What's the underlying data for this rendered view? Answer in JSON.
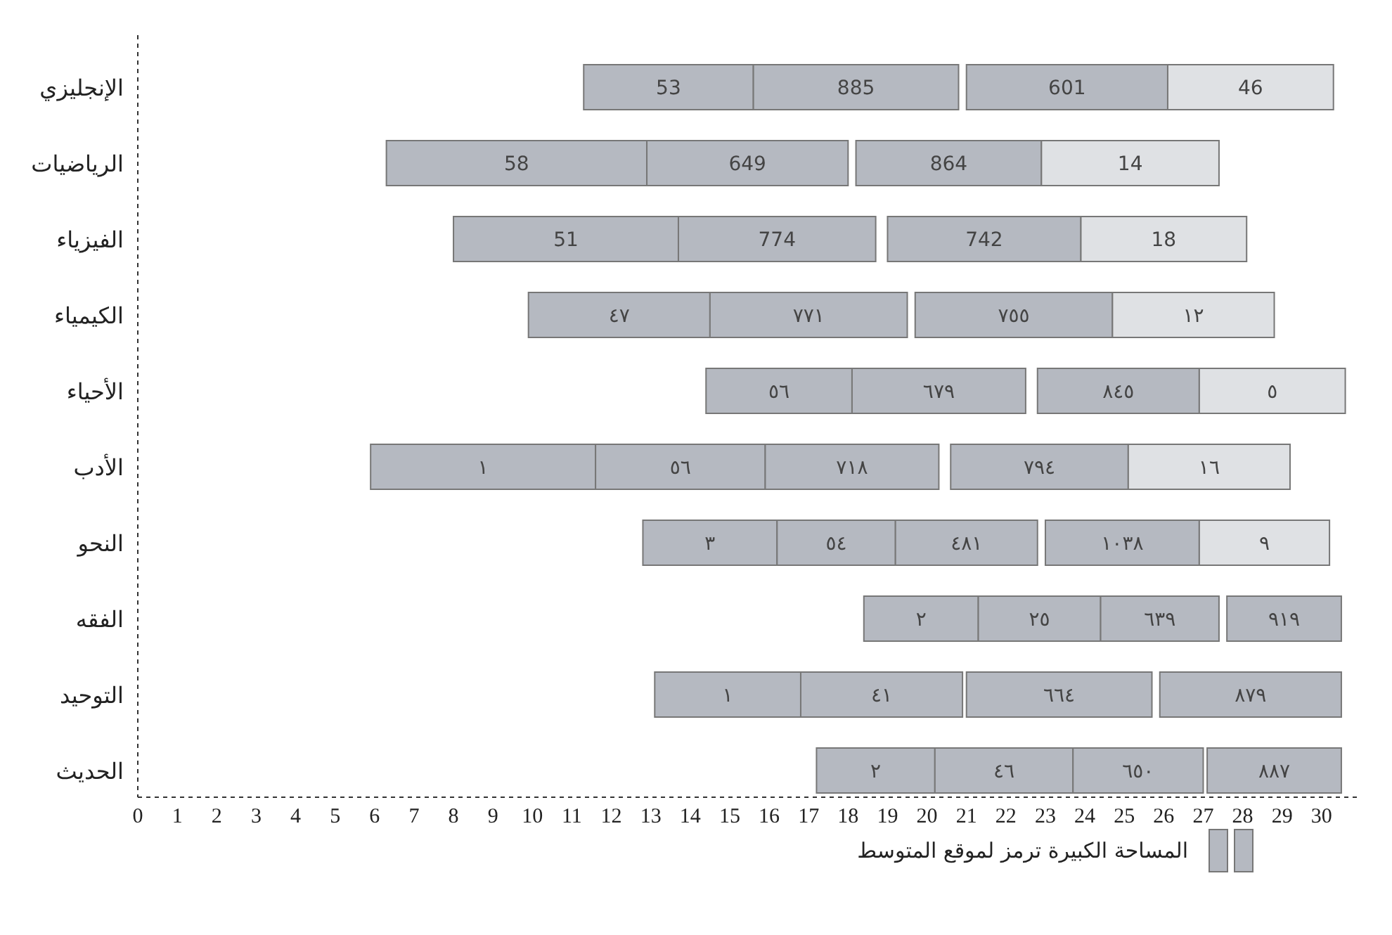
{
  "chart_data": {
    "type": "bar",
    "orientation": "horizontal",
    "grid": false,
    "categories": [
      "الإنجليزي",
      "الرياضيات",
      "الفيزياء",
      "الكيمياء",
      "الأحياء",
      "الأدب",
      "النحو",
      "الفقه",
      "التوحيد",
      "الحديث"
    ],
    "xlim": [
      0,
      31
    ],
    "xticks": [
      0,
      1,
      2,
      3,
      4,
      5,
      6,
      7,
      8,
      9,
      10,
      11,
      12,
      13,
      14,
      15,
      16,
      17,
      18,
      19,
      20,
      21,
      22,
      23,
      24,
      25,
      26,
      27,
      28,
      29,
      30
    ],
    "series": [
      {
        "base": [
          11.3,
          6.3,
          8.0,
          9.9,
          14.4,
          5.9,
          12.8,
          18.4,
          13.1,
          17.2
        ],
        "values": [
          4.3,
          6.6,
          5.7,
          4.6,
          3.7,
          5.7,
          3.4,
          2.9,
          3.7,
          3.0
        ],
        "colors": [
          "#b5b9c1",
          "#b5b9c1",
          "#b5b9c1",
          "#b5b9c1",
          "#b5b9c1",
          "#b5b9c1",
          "#b5b9c1",
          "#b5b9c1",
          "#b5b9c1",
          "#b5b9c1"
        ]
      },
      {
        "base": [
          15.6,
          12.9,
          13.7,
          14.5,
          18.1,
          11.6,
          16.2,
          21.3,
          16.8,
          20.2
        ],
        "values": [
          5.2,
          5.1,
          5.0,
          5.0,
          4.4,
          4.3,
          3.0,
          3.1,
          4.1,
          3.5
        ],
        "colors": [
          "#b5b9c1",
          "#b5b9c1",
          "#b5b9c1",
          "#b5b9c1",
          "#b5b9c1",
          "#b5b9c1",
          "#b5b9c1",
          "#b5b9c1",
          "#b5b9c1",
          "#b5b9c1"
        ]
      },
      {
        "base": [
          21.0,
          18.2,
          19.0,
          19.7,
          22.8,
          15.9,
          19.2,
          24.4,
          21.0,
          23.7
        ],
        "values": [
          5.1,
          4.7,
          4.9,
          5.0,
          4.1,
          4.4,
          3.6,
          3.0,
          4.7,
          3.3
        ],
        "colors": [
          "#b5b9c1",
          "#b5b9c1",
          "#b5b9c1",
          "#b5b9c1",
          "#b5b9c1",
          "#b5b9c1",
          "#b5b9c1",
          "#b5b9c1",
          "#b5b9c1",
          "#b5b9c1"
        ]
      },
      {
        "base": [
          26.1,
          22.9,
          23.9,
          24.7,
          26.9,
          20.6,
          23.0,
          27.6,
          25.9,
          27.1
        ],
        "values": [
          4.2,
          4.5,
          4.2,
          4.1,
          3.7,
          4.5,
          3.9,
          2.9,
          4.6,
          3.4
        ],
        "colors": [
          "#dfe1e4",
          "#dfe1e4",
          "#dfe1e4",
          "#dfe1e4",
          "#dfe1e4",
          "#b5b9c1",
          "#b5b9c1",
          "#b5b9c1",
          "#b5b9c1",
          "#b5b9c1"
        ]
      },
      {
        "base": [
          null,
          null,
          null,
          null,
          null,
          25.1,
          26.9,
          null,
          null,
          null
        ],
        "values": [
          null,
          null,
          null,
          null,
          null,
          4.1,
          3.3,
          null,
          null,
          null
        ],
        "colors": [
          null,
          null,
          null,
          null,
          null,
          "#dfe1e4",
          "#dfe1e4",
          null,
          null,
          null
        ]
      }
    ],
    "annotations": [
      "53",
      "885",
      "601",
      "46",
      "58",
      "649",
      "864",
      "14",
      "51",
      "774",
      "742",
      "18",
      "٤٧",
      "٧٧١",
      "٧٥٥",
      "١٢",
      "٥٦",
      "٦٧٩",
      "٨٤٥",
      "٥",
      "١",
      "٥٦",
      "٧١٨",
      "٧٩٤",
      "١٦",
      "٣",
      "٥٤",
      "٤٨١",
      "١٠٣٨",
      "٩",
      "٢",
      "٢٥",
      "٦٣٩",
      "٩١٩",
      "١",
      "٤١",
      "٦٦٤",
      "٨٧٩",
      "٢",
      "٤٦",
      "٦٥٠",
      "٨٨٧",
      "المساحة الكبيرة ترمز لموقع المتوسط"
    ]
  }
}
